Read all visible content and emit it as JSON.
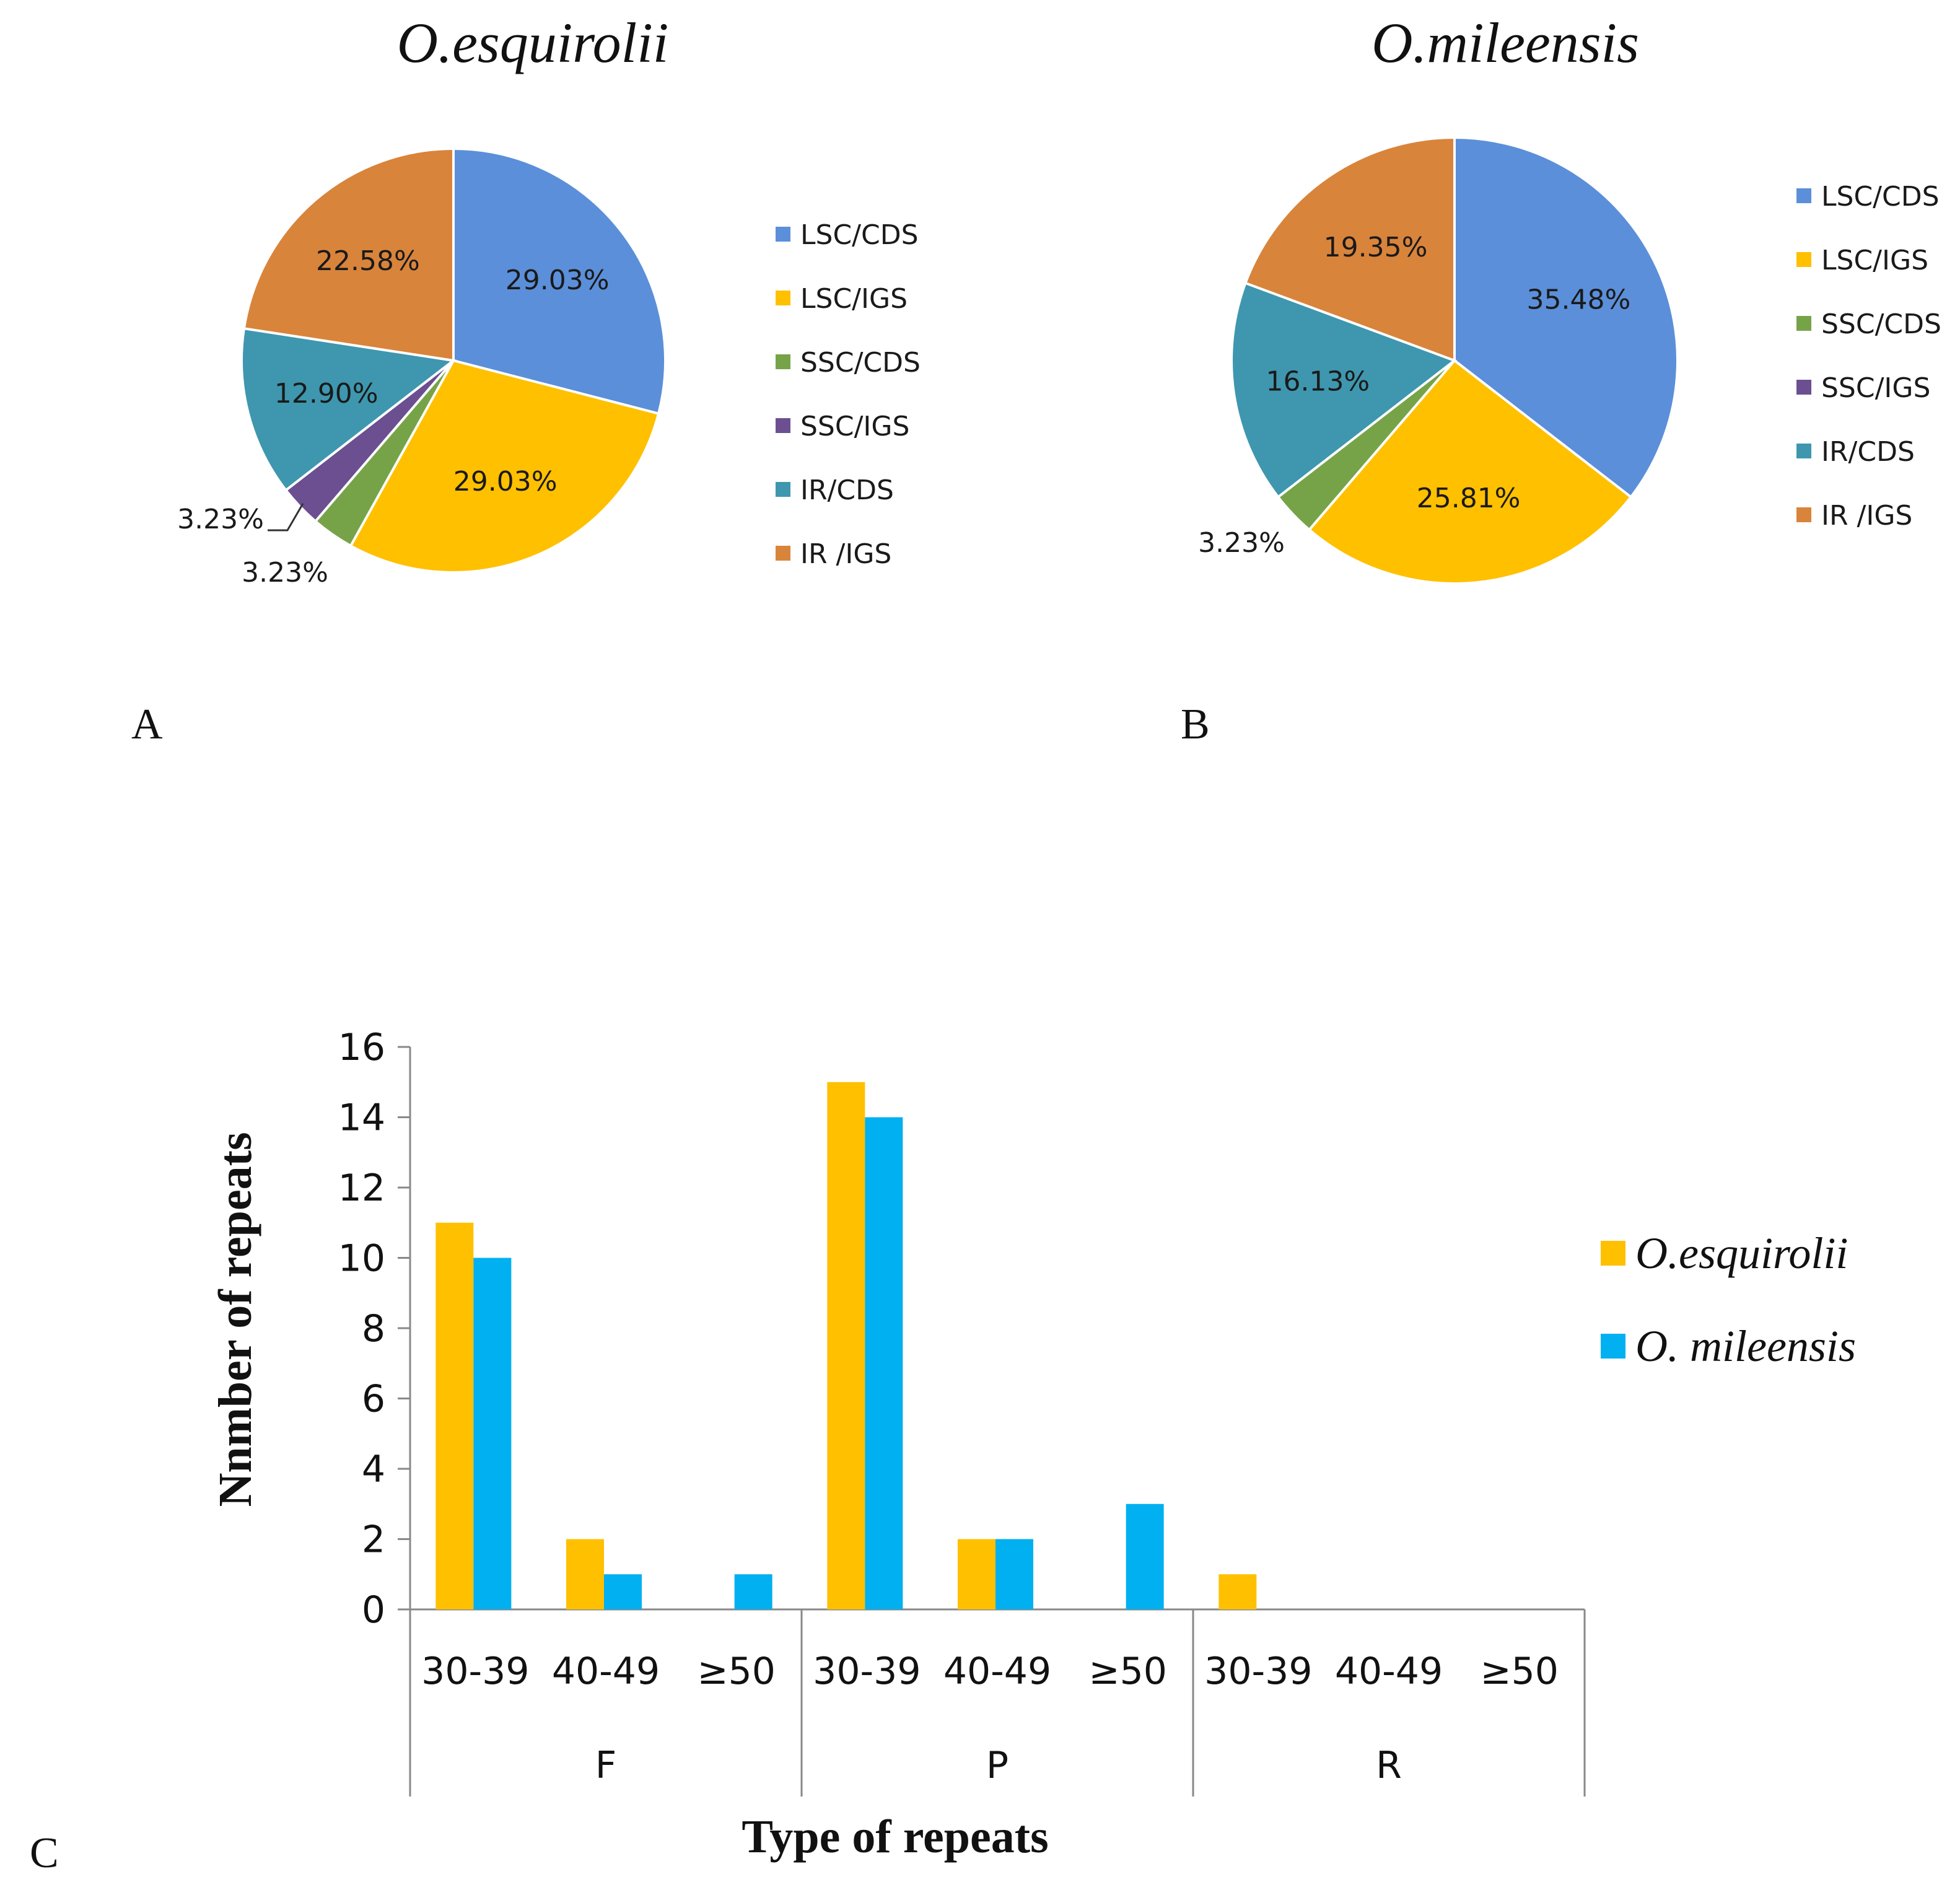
{
  "panel_labels": {
    "a": "A",
    "b": "B",
    "c": "C"
  },
  "chart_data": [
    {
      "type": "pie",
      "title": "O.esquirolii",
      "slices": [
        {
          "label": "LSC/CDS",
          "value": 29.03,
          "text": "29.03%",
          "color": "#5B8FD9"
        },
        {
          "label": "LSC/IGS",
          "value": 29.03,
          "text": "29.03%",
          "color": "#FFC000"
        },
        {
          "label": "SSC/CDS",
          "value": 3.23,
          "text": "3.23%",
          "color": "#77A348"
        },
        {
          "label": "SSC/IGS",
          "value": 3.23,
          "text": "3.23%",
          "color": "#6B4F91"
        },
        {
          "label": "IR/CDS",
          "value": 12.9,
          "text": "12.90%",
          "color": "#3E97AE"
        },
        {
          "label": "IR /IGS",
          "value": 22.58,
          "text": "22.58%",
          "color": "#D9843B"
        }
      ],
      "legend": [
        "LSC/CDS",
        "LSC/IGS",
        "SSC/CDS",
        "SSC/IGS",
        "IR/CDS",
        "IR /IGS"
      ]
    },
    {
      "type": "pie",
      "title": "O.mileensis",
      "slices": [
        {
          "label": "LSC/CDS",
          "value": 35.48,
          "text": "35.48%",
          "color": "#5B8FD9"
        },
        {
          "label": "LSC/IGS",
          "value": 25.81,
          "text": "25.81%",
          "color": "#FFC000"
        },
        {
          "label": "SSC/CDS",
          "value": 3.23,
          "text": "3.23%",
          "color": "#77A348"
        },
        {
          "label": "SSC/IGS",
          "value": 0,
          "text": "",
          "color": "#6B4F91"
        },
        {
          "label": "IR/CDS",
          "value": 16.13,
          "text": "16.13%",
          "color": "#3E97AE"
        },
        {
          "label": "IR /IGS",
          "value": 19.35,
          "text": "19.35%",
          "color": "#D9843B"
        }
      ],
      "legend": [
        "LSC/CDS",
        "LSC/IGS",
        "SSC/CDS",
        "SSC/IGS",
        "IR/CDS",
        "IR /IGS"
      ]
    },
    {
      "type": "bar",
      "xlabel": "Type of  repeats",
      "ylabel": "Nnmber of repeats",
      "ylim": [
        0,
        16
      ],
      "yticks": [
        0,
        2,
        4,
        6,
        8,
        10,
        12,
        14,
        16
      ],
      "groups": [
        "F",
        "P",
        "R"
      ],
      "subcategories": [
        "30-39",
        "40-49",
        "≥50"
      ],
      "series": [
        {
          "name": "O.esquirolii",
          "color": "#FFC000",
          "values": [
            11,
            2,
            0,
            15,
            2,
            0,
            1,
            0,
            0
          ]
        },
        {
          "name": "O. mileensis",
          "color": "#00B0F0",
          "values": [
            10,
            1,
            1,
            14,
            2,
            3,
            0,
            0,
            0
          ]
        }
      ],
      "legend_position": "right"
    }
  ]
}
